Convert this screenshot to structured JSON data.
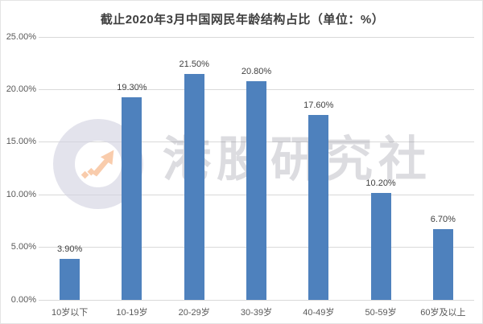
{
  "title": "截止2020年3月中国网民年龄结构占比（单位：%）",
  "watermark": {
    "text": "港股研究社",
    "logo_icon": "trend-up-arrow-in-circle"
  },
  "colors": {
    "bar": "#4E81BD",
    "title_text": "#3F3F3F",
    "axis_text": "#595959",
    "gridline": "#D9D9D9",
    "watermark_arrow": "#F9CCAC"
  },
  "chart_data": {
    "type": "bar",
    "title": "截止2020年3月中国网民年龄结构占比（单位：%）",
    "categories": [
      "10岁以下",
      "10-19岁",
      "20-29岁",
      "30-39岁",
      "40-49岁",
      "50-59岁",
      "60岁及以上"
    ],
    "values": [
      3.9,
      19.3,
      21.5,
      20.8,
      17.6,
      10.2,
      6.7
    ],
    "data_labels": [
      "3.90%",
      "19.30%",
      "21.50%",
      "20.80%",
      "17.60%",
      "10.20%",
      "6.70%"
    ],
    "y_tick_values": [
      0,
      5,
      10,
      15,
      20,
      25
    ],
    "y_tick_labels": [
      "0.00%",
      "5.00%",
      "10.00%",
      "15.00%",
      "20.00%",
      "25.00%"
    ],
    "ylim": [
      0,
      25
    ],
    "xlabel": "",
    "ylabel": "",
    "grid": true,
    "legend": false,
    "bar_color": "#4E81BD"
  }
}
